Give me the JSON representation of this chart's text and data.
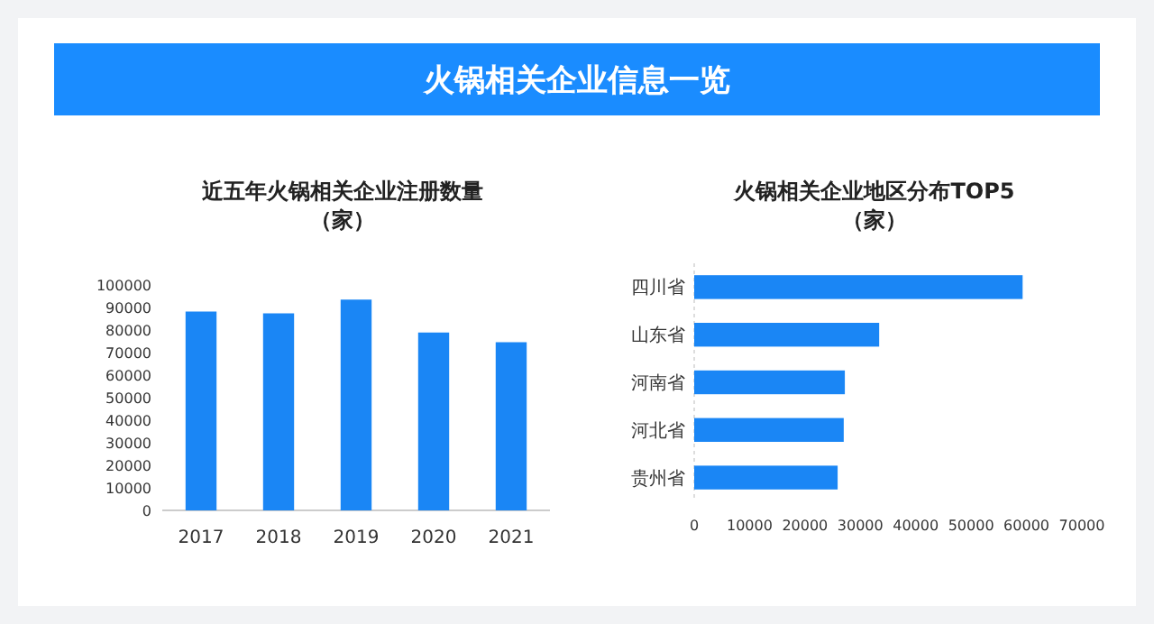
{
  "chart_data": [
    {
      "type": "other",
      "title": "火锅相关企业信息一览",
      "color": "#1a8cff"
    },
    {
      "type": "bar",
      "title": "近五年火锅相关企业注册数量",
      "subtitle": "（家）",
      "categories": [
        "2017",
        "2018",
        "2019",
        "2020",
        "2021"
      ],
      "values": [
        88200,
        87400,
        93500,
        78900,
        74600
      ],
      "color": "#1a86f5",
      "ylim": [
        0,
        100000
      ],
      "yticks": [
        0,
        10000,
        20000,
        30000,
        40000,
        50000,
        60000,
        70000,
        80000,
        90000,
        100000
      ]
    },
    {
      "type": "bar",
      "orientation": "horizontal",
      "title": "火锅相关企业地区分布TOP5",
      "subtitle": "（家）",
      "categories": [
        "四川省",
        "山东省",
        "河南省",
        "河北省",
        "贵州省"
      ],
      "values": [
        59300,
        33400,
        27200,
        27000,
        25900
      ],
      "color": "#1a86f5",
      "xlim": [
        0,
        70000
      ],
      "xticks": [
        0,
        10000,
        20000,
        30000,
        40000,
        50000,
        60000,
        70000
      ]
    }
  ]
}
